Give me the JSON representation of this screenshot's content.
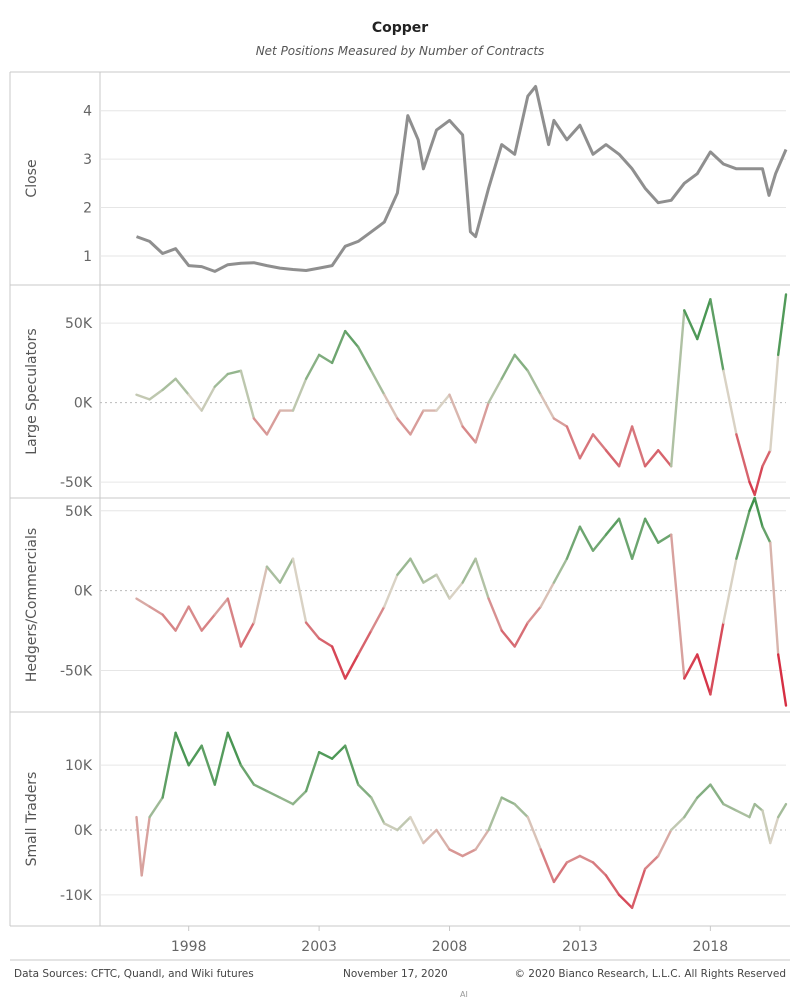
{
  "title": "Copper",
  "subtitle": "Net Positions Measured by Number of Contracts",
  "footer": {
    "sources": "Data Sources: CFTC, Quandl, and Wiki futures",
    "date": "November 17, 2020",
    "copyright": "© 2020 Bianco Research, L.L.C. All Rights Reserved",
    "mark": "AI"
  },
  "colors": {
    "close": "#8f8f8f",
    "positive": "#2e8b3e",
    "negative": "#d6233a",
    "neutral": "#d9d2c4",
    "grid": "#e6e6e6",
    "zero": "#bbbbbb",
    "border": "#c8c8c8"
  },
  "chart_data": {
    "type": "line",
    "xaxis": {
      "ticks": [
        1998,
        2003,
        2008,
        2013,
        2018
      ],
      "range": [
        1994.6,
        2020.9
      ]
    },
    "panels": [
      {
        "name": "Close",
        "ylabel": "Close",
        "yticks": [
          1,
          2,
          3,
          4
        ],
        "ytick_labels": [
          "1",
          "2",
          "3",
          "4"
        ],
        "ylim": [
          0.4,
          4.8
        ],
        "style": "gray",
        "points": [
          [
            1996.0,
            1.4
          ],
          [
            1996.5,
            1.3
          ],
          [
            1997.0,
            1.05
          ],
          [
            1997.5,
            1.15
          ],
          [
            1998.0,
            0.8
          ],
          [
            1998.5,
            0.78
          ],
          [
            1999.0,
            0.68
          ],
          [
            1999.5,
            0.82
          ],
          [
            2000.0,
            0.85
          ],
          [
            2000.5,
            0.86
          ],
          [
            2001.0,
            0.8
          ],
          [
            2001.5,
            0.75
          ],
          [
            2002.0,
            0.72
          ],
          [
            2002.5,
            0.7
          ],
          [
            2003.0,
            0.75
          ],
          [
            2003.5,
            0.8
          ],
          [
            2004.0,
            1.2
          ],
          [
            2004.5,
            1.3
          ],
          [
            2005.0,
            1.5
          ],
          [
            2005.5,
            1.7
          ],
          [
            2006.0,
            2.3
          ],
          [
            2006.4,
            3.9
          ],
          [
            2006.8,
            3.4
          ],
          [
            2007.0,
            2.8
          ],
          [
            2007.5,
            3.6
          ],
          [
            2008.0,
            3.8
          ],
          [
            2008.5,
            3.5
          ],
          [
            2008.8,
            1.5
          ],
          [
            2009.0,
            1.4
          ],
          [
            2009.5,
            2.4
          ],
          [
            2010.0,
            3.3
          ],
          [
            2010.5,
            3.1
          ],
          [
            2011.0,
            4.3
          ],
          [
            2011.3,
            4.5
          ],
          [
            2011.8,
            3.3
          ],
          [
            2012.0,
            3.8
          ],
          [
            2012.5,
            3.4
          ],
          [
            2013.0,
            3.7
          ],
          [
            2013.5,
            3.1
          ],
          [
            2014.0,
            3.3
          ],
          [
            2014.5,
            3.1
          ],
          [
            2015.0,
            2.8
          ],
          [
            2015.5,
            2.4
          ],
          [
            2016.0,
            2.1
          ],
          [
            2016.5,
            2.15
          ],
          [
            2017.0,
            2.5
          ],
          [
            2017.5,
            2.7
          ],
          [
            2018.0,
            3.15
          ],
          [
            2018.5,
            2.9
          ],
          [
            2019.0,
            2.8
          ],
          [
            2019.5,
            2.8
          ],
          [
            2020.0,
            2.8
          ],
          [
            2020.25,
            2.25
          ],
          [
            2020.5,
            2.7
          ],
          [
            2020.9,
            3.2
          ]
        ]
      },
      {
        "name": "Large Speculators",
        "ylabel": "Large Speculators",
        "yticks": [
          -50000,
          0,
          50000
        ],
        "ytick_labels": [
          "-50K",
          "0K",
          "50K"
        ],
        "ylim": [
          -60000,
          74000
        ],
        "style": "diverging",
        "cmax": 68000,
        "points": [
          [
            1996.0,
            5000
          ],
          [
            1996.5,
            2000
          ],
          [
            1997.0,
            8000
          ],
          [
            1997.5,
            15000
          ],
          [
            1998.0,
            5000
          ],
          [
            1998.5,
            -5000
          ],
          [
            1999.0,
            10000
          ],
          [
            1999.5,
            18000
          ],
          [
            2000.0,
            20000
          ],
          [
            2000.5,
            -10000
          ],
          [
            2001.0,
            -20000
          ],
          [
            2001.5,
            -5000
          ],
          [
            2002.0,
            -5000
          ],
          [
            2002.5,
            15000
          ],
          [
            2003.0,
            30000
          ],
          [
            2003.5,
            25000
          ],
          [
            2004.0,
            45000
          ],
          [
            2004.5,
            35000
          ],
          [
            2005.0,
            20000
          ],
          [
            2005.5,
            5000
          ],
          [
            2006.0,
            -10000
          ],
          [
            2006.5,
            -20000
          ],
          [
            2007.0,
            -5000
          ],
          [
            2007.5,
            -5000
          ],
          [
            2008.0,
            5000
          ],
          [
            2008.5,
            -15000
          ],
          [
            2009.0,
            -25000
          ],
          [
            2009.5,
            0
          ],
          [
            2010.0,
            15000
          ],
          [
            2010.5,
            30000
          ],
          [
            2011.0,
            20000
          ],
          [
            2011.5,
            5000
          ],
          [
            2012.0,
            -10000
          ],
          [
            2012.5,
            -15000
          ],
          [
            2013.0,
            -35000
          ],
          [
            2013.5,
            -20000
          ],
          [
            2014.0,
            -30000
          ],
          [
            2014.5,
            -40000
          ],
          [
            2015.0,
            -15000
          ],
          [
            2015.5,
            -40000
          ],
          [
            2016.0,
            -30000
          ],
          [
            2016.5,
            -40000
          ],
          [
            2017.0,
            58000
          ],
          [
            2017.5,
            40000
          ],
          [
            2018.0,
            65000
          ],
          [
            2018.5,
            20000
          ],
          [
            2019.0,
            -20000
          ],
          [
            2019.5,
            -50000
          ],
          [
            2019.7,
            -58000
          ],
          [
            2020.0,
            -40000
          ],
          [
            2020.3,
            -30000
          ],
          [
            2020.6,
            30000
          ],
          [
            2020.9,
            68000
          ]
        ]
      },
      {
        "name": "Hedgers/Commercials",
        "ylabel": "Hedgers/Commercials",
        "yticks": [
          -50000,
          0,
          50000
        ],
        "ytick_labels": [
          "-50K",
          "0K",
          "50K"
        ],
        "ylim": [
          -76000,
          58000
        ],
        "style": "diverging",
        "cmax": 62000,
        "points": [
          [
            1996.0,
            -5000
          ],
          [
            1996.5,
            -10000
          ],
          [
            1997.0,
            -15000
          ],
          [
            1997.5,
            -25000
          ],
          [
            1998.0,
            -10000
          ],
          [
            1998.5,
            -25000
          ],
          [
            1999.0,
            -15000
          ],
          [
            1999.5,
            -5000
          ],
          [
            2000.0,
            -35000
          ],
          [
            2000.5,
            -20000
          ],
          [
            2001.0,
            15000
          ],
          [
            2001.5,
            5000
          ],
          [
            2002.0,
            20000
          ],
          [
            2002.5,
            -20000
          ],
          [
            2003.0,
            -30000
          ],
          [
            2003.5,
            -35000
          ],
          [
            2004.0,
            -55000
          ],
          [
            2004.5,
            -40000
          ],
          [
            2005.0,
            -25000
          ],
          [
            2005.5,
            -10000
          ],
          [
            2006.0,
            10000
          ],
          [
            2006.5,
            20000
          ],
          [
            2007.0,
            5000
          ],
          [
            2007.5,
            10000
          ],
          [
            2008.0,
            -5000
          ],
          [
            2008.5,
            5000
          ],
          [
            2009.0,
            20000
          ],
          [
            2009.5,
            -5000
          ],
          [
            2010.0,
            -25000
          ],
          [
            2010.5,
            -35000
          ],
          [
            2011.0,
            -20000
          ],
          [
            2011.5,
            -10000
          ],
          [
            2012.0,
            5000
          ],
          [
            2012.5,
            20000
          ],
          [
            2013.0,
            40000
          ],
          [
            2013.5,
            25000
          ],
          [
            2014.0,
            35000
          ],
          [
            2014.5,
            45000
          ],
          [
            2015.0,
            20000
          ],
          [
            2015.5,
            45000
          ],
          [
            2016.0,
            30000
          ],
          [
            2016.5,
            35000
          ],
          [
            2017.0,
            -55000
          ],
          [
            2017.5,
            -40000
          ],
          [
            2018.0,
            -65000
          ],
          [
            2018.5,
            -20000
          ],
          [
            2019.0,
            20000
          ],
          [
            2019.5,
            50000
          ],
          [
            2019.7,
            58000
          ],
          [
            2020.0,
            40000
          ],
          [
            2020.3,
            30000
          ],
          [
            2020.6,
            -40000
          ],
          [
            2020.9,
            -72000
          ]
        ]
      },
      {
        "name": "Small Traders",
        "ylabel": "Small Traders",
        "yticks": [
          -10000,
          0,
          10000
        ],
        "ytick_labels": [
          "-10K",
          "0K",
          "10K"
        ],
        "ylim": [
          -14800,
          18200
        ],
        "style": "diverging",
        "cmax": 16000,
        "points": [
          [
            1996.0,
            2000
          ],
          [
            1996.2,
            -7000
          ],
          [
            1996.5,
            2000
          ],
          [
            1997.0,
            5000
          ],
          [
            1997.5,
            15000
          ],
          [
            1998.0,
            10000
          ],
          [
            1998.5,
            13000
          ],
          [
            1999.0,
            7000
          ],
          [
            1999.5,
            15000
          ],
          [
            2000.0,
            10000
          ],
          [
            2000.5,
            7000
          ],
          [
            2001.0,
            6000
          ],
          [
            2001.5,
            5000
          ],
          [
            2002.0,
            4000
          ],
          [
            2002.5,
            6000
          ],
          [
            2003.0,
            12000
          ],
          [
            2003.5,
            11000
          ],
          [
            2004.0,
            13000
          ],
          [
            2004.5,
            7000
          ],
          [
            2005.0,
            5000
          ],
          [
            2005.5,
            1000
          ],
          [
            2006.0,
            0
          ],
          [
            2006.5,
            2000
          ],
          [
            2007.0,
            -2000
          ],
          [
            2007.5,
            0
          ],
          [
            2008.0,
            -3000
          ],
          [
            2008.5,
            -4000
          ],
          [
            2009.0,
            -3000
          ],
          [
            2009.5,
            0
          ],
          [
            2010.0,
            5000
          ],
          [
            2010.5,
            4000
          ],
          [
            2011.0,
            2000
          ],
          [
            2011.5,
            -3000
          ],
          [
            2012.0,
            -8000
          ],
          [
            2012.5,
            -5000
          ],
          [
            2013.0,
            -4000
          ],
          [
            2013.5,
            -5000
          ],
          [
            2014.0,
            -7000
          ],
          [
            2014.5,
            -10000
          ],
          [
            2015.0,
            -12000
          ],
          [
            2015.5,
            -6000
          ],
          [
            2016.0,
            -4000
          ],
          [
            2016.5,
            0
          ],
          [
            2017.0,
            2000
          ],
          [
            2017.5,
            5000
          ],
          [
            2018.0,
            7000
          ],
          [
            2018.5,
            4000
          ],
          [
            2019.0,
            3000
          ],
          [
            2019.5,
            2000
          ],
          [
            2019.7,
            4000
          ],
          [
            2020.0,
            3000
          ],
          [
            2020.3,
            -2000
          ],
          [
            2020.6,
            2000
          ],
          [
            2020.9,
            4000
          ]
        ]
      }
    ]
  }
}
